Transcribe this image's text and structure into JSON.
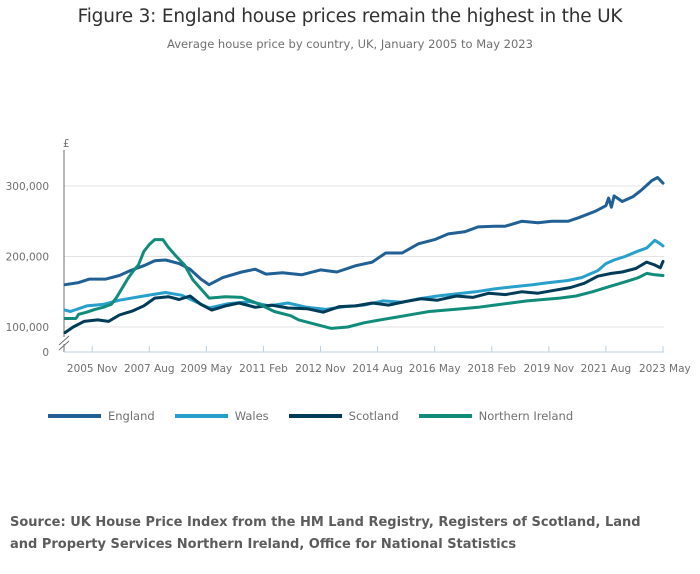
{
  "title": "Figure 3: England house prices remain the highest in the UK",
  "subtitle": "Average house price by country, UK, January 2005 to May 2023",
  "source": "Source: UK House Price Index from the HM Land Registry, Registers of Scotland, Land and Property Services Northern Ireland, Office for National Statistics",
  "chart_data": {
    "type": "line",
    "title": "Figure 3: England house prices remain the highest in the UK",
    "subtitle": "Average house price by country, UK, January 2005 to May 2023",
    "xlabel": "",
    "ylabel": "£",
    "y_axis_break": true,
    "ylim": [
      0,
      350000
    ],
    "yticks": [
      0,
      100000,
      200000,
      300000
    ],
    "ytick_labels": [
      "0",
      "100,000",
      "200,000",
      "300,000"
    ],
    "xlim": [
      "2005-01",
      "2023-05"
    ],
    "xticks": [
      "2005-11",
      "2007-08",
      "2009-05",
      "2011-02",
      "2012-11",
      "2014-08",
      "2016-05",
      "2018-02",
      "2019-11",
      "2021-08",
      "2023-05"
    ],
    "xtick_labels": [
      "2005 Nov",
      "2007 Aug",
      "2009 May",
      "2011 Feb",
      "2012 Nov",
      "2014 Aug",
      "2016 May",
      "2018 Feb",
      "2019 Nov",
      "2021 Aug",
      "2023 May"
    ],
    "grid": true,
    "legend_position": "bottom-left",
    "series": [
      {
        "name": "England",
        "color": "#206095",
        "points": [
          [
            "2005-01",
            160000
          ],
          [
            "2005-06",
            163000
          ],
          [
            "2005-10",
            168000
          ],
          [
            "2006-04",
            168000
          ],
          [
            "2006-09",
            173000
          ],
          [
            "2007-01",
            180000
          ],
          [
            "2007-06",
            187000
          ],
          [
            "2007-10",
            194000
          ],
          [
            "2008-02",
            195000
          ],
          [
            "2008-07",
            190000
          ],
          [
            "2008-11",
            182000
          ],
          [
            "2009-03",
            168000
          ],
          [
            "2009-06",
            160000
          ],
          [
            "2009-11",
            170000
          ],
          [
            "2010-06",
            178000
          ],
          [
            "2010-11",
            182000
          ],
          [
            "2011-03",
            175000
          ],
          [
            "2011-09",
            177000
          ],
          [
            "2012-04",
            174000
          ],
          [
            "2012-11",
            181000
          ],
          [
            "2013-05",
            178000
          ],
          [
            "2013-12",
            187000
          ],
          [
            "2014-06",
            192000
          ],
          [
            "2014-11",
            205000
          ],
          [
            "2015-05",
            205000
          ],
          [
            "2015-11",
            218000
          ],
          [
            "2016-05",
            224000
          ],
          [
            "2016-10",
            232000
          ],
          [
            "2017-04",
            235000
          ],
          [
            "2017-09",
            242000
          ],
          [
            "2018-03",
            243000
          ],
          [
            "2018-07",
            243000
          ],
          [
            "2019-01",
            250000
          ],
          [
            "2019-07",
            248000
          ],
          [
            "2019-12",
            250000
          ],
          [
            "2020-06",
            250000
          ],
          [
            "2020-10",
            255000
          ],
          [
            "2021-04",
            264000
          ],
          [
            "2021-08",
            272000
          ],
          [
            "2021-09",
            283000
          ],
          [
            "2021-10",
            270000
          ],
          [
            "2021-11",
            286000
          ],
          [
            "2022-02",
            278000
          ],
          [
            "2022-06",
            285000
          ],
          [
            "2022-09",
            294000
          ],
          [
            "2023-01",
            308000
          ],
          [
            "2023-03",
            312000
          ],
          [
            "2023-05",
            304000
          ]
        ]
      },
      {
        "name": "Wales",
        "color": "#27a0cc",
        "points": [
          [
            "2005-01",
            124000
          ],
          [
            "2005-03",
            122000
          ],
          [
            "2005-09",
            130000
          ],
          [
            "2006-03",
            132000
          ],
          [
            "2006-09",
            138000
          ],
          [
            "2007-03",
            142000
          ],
          [
            "2007-09",
            146000
          ],
          [
            "2008-02",
            149000
          ],
          [
            "2008-08",
            145000
          ],
          [
            "2009-01",
            136000
          ],
          [
            "2009-06",
            127000
          ],
          [
            "2010-01",
            133000
          ],
          [
            "2010-09",
            136000
          ],
          [
            "2011-04",
            130000
          ],
          [
            "2011-11",
            134000
          ],
          [
            "2012-06",
            128000
          ],
          [
            "2013-01",
            125000
          ],
          [
            "2013-08",
            129000
          ],
          [
            "2014-03",
            131000
          ],
          [
            "2014-10",
            137000
          ],
          [
            "2015-05",
            135000
          ],
          [
            "2015-11",
            140000
          ],
          [
            "2016-06",
            144000
          ],
          [
            "2017-01",
            147000
          ],
          [
            "2017-08",
            150000
          ],
          [
            "2018-03",
            154000
          ],
          [
            "2018-10",
            157000
          ],
          [
            "2019-05",
            160000
          ],
          [
            "2019-11",
            163000
          ],
          [
            "2020-06",
            166000
          ],
          [
            "2020-11",
            170000
          ],
          [
            "2021-05",
            180000
          ],
          [
            "2021-08",
            190000
          ],
          [
            "2021-11",
            195000
          ],
          [
            "2022-03",
            200000
          ],
          [
            "2022-08",
            208000
          ],
          [
            "2022-11",
            212000
          ],
          [
            "2023-02",
            223000
          ],
          [
            "2023-04",
            218000
          ],
          [
            "2023-05",
            215000
          ]
        ]
      },
      {
        "name": "Scotland",
        "color": "#003c57",
        "points": [
          [
            "2005-01",
            92000
          ],
          [
            "2005-04",
            100000
          ],
          [
            "2005-08",
            108000
          ],
          [
            "2006-01",
            110000
          ],
          [
            "2006-05",
            108000
          ],
          [
            "2006-09",
            117000
          ],
          [
            "2007-02",
            123000
          ],
          [
            "2007-06",
            130000
          ],
          [
            "2007-10",
            141000
          ],
          [
            "2008-03",
            143000
          ],
          [
            "2008-07",
            139000
          ],
          [
            "2008-11",
            144000
          ],
          [
            "2009-03",
            132000
          ],
          [
            "2009-07",
            124000
          ],
          [
            "2009-12",
            130000
          ],
          [
            "2010-05",
            134000
          ],
          [
            "2010-11",
            128000
          ],
          [
            "2011-05",
            131000
          ],
          [
            "2011-11",
            127000
          ],
          [
            "2012-06",
            126000
          ],
          [
            "2012-12",
            121000
          ],
          [
            "2013-06",
            129000
          ],
          [
            "2013-12",
            130000
          ],
          [
            "2014-06",
            134000
          ],
          [
            "2014-12",
            131000
          ],
          [
            "2015-06",
            136000
          ],
          [
            "2015-12",
            140000
          ],
          [
            "2016-06",
            138000
          ],
          [
            "2017-01",
            144000
          ],
          [
            "2017-07",
            142000
          ],
          [
            "2018-01",
            148000
          ],
          [
            "2018-07",
            146000
          ],
          [
            "2019-01",
            150000
          ],
          [
            "2019-07",
            148000
          ],
          [
            "2020-01",
            152000
          ],
          [
            "2020-07",
            156000
          ],
          [
            "2020-12",
            162000
          ],
          [
            "2021-05",
            172000
          ],
          [
            "2021-10",
            176000
          ],
          [
            "2022-02",
            178000
          ],
          [
            "2022-07",
            183000
          ],
          [
            "2022-11",
            192000
          ],
          [
            "2023-02",
            188000
          ],
          [
            "2023-04",
            184000
          ],
          [
            "2023-05",
            193000
          ]
        ]
      },
      {
        "name": "Northern Ireland",
        "color": "#118c7b",
        "points": [
          [
            "2005-01",
            112000
          ],
          [
            "2005-05",
            112000
          ],
          [
            "2005-06",
            118000
          ],
          [
            "2005-09",
            121000
          ],
          [
            "2005-12",
            125000
          ],
          [
            "2006-03",
            128000
          ],
          [
            "2006-06",
            132000
          ],
          [
            "2006-08",
            142000
          ],
          [
            "2006-10",
            155000
          ],
          [
            "2006-12",
            168000
          ],
          [
            "2007-02",
            179000
          ],
          [
            "2007-04",
            188000
          ],
          [
            "2007-06",
            207000
          ],
          [
            "2007-08",
            217000
          ],
          [
            "2007-10",
            224000
          ],
          [
            "2008-01",
            224000
          ],
          [
            "2008-03",
            213000
          ],
          [
            "2008-06",
            200000
          ],
          [
            "2008-09",
            188000
          ],
          [
            "2008-12",
            167000
          ],
          [
            "2009-03",
            154000
          ],
          [
            "2009-06",
            141000
          ],
          [
            "2009-12",
            143000
          ],
          [
            "2010-06",
            142000
          ],
          [
            "2010-12",
            133000
          ],
          [
            "2011-06",
            122000
          ],
          [
            "2011-12",
            116000
          ],
          [
            "2012-03",
            110000
          ],
          [
            "2012-09",
            104000
          ],
          [
            "2013-03",
            98000
          ],
          [
            "2013-09",
            100000
          ],
          [
            "2014-03",
            106000
          ],
          [
            "2014-09",
            110000
          ],
          [
            "2015-03",
            114000
          ],
          [
            "2015-09",
            118000
          ],
          [
            "2016-03",
            122000
          ],
          [
            "2016-09",
            124000
          ],
          [
            "2017-03",
            126000
          ],
          [
            "2017-09",
            128000
          ],
          [
            "2018-03",
            131000
          ],
          [
            "2018-09",
            134000
          ],
          [
            "2019-03",
            137000
          ],
          [
            "2019-09",
            139000
          ],
          [
            "2020-03",
            141000
          ],
          [
            "2020-09",
            144000
          ],
          [
            "2021-03",
            150000
          ],
          [
            "2021-09",
            157000
          ],
          [
            "2022-03",
            164000
          ],
          [
            "2022-08",
            170000
          ],
          [
            "2022-11",
            176000
          ],
          [
            "2023-02",
            174000
          ],
          [
            "2023-05",
            173000
          ]
        ]
      }
    ]
  }
}
